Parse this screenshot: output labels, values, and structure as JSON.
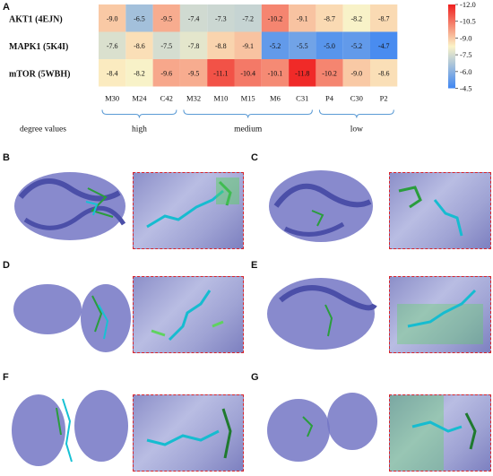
{
  "panel_labels": {
    "A": "A",
    "B": "B",
    "C": "C",
    "D": "D",
    "E": "E",
    "F": "F",
    "G": "G"
  },
  "chart_data": {
    "type": "heatmap",
    "rows": [
      "AKT1 (4EJN)",
      "MAPK1 (5K4I)",
      "mTOR (5WBH)"
    ],
    "columns": [
      "M30",
      "M24",
      "C42",
      "M32",
      "M10",
      "M15",
      "M6",
      "C31",
      "P4",
      "C30",
      "P2"
    ],
    "values": [
      [
        -9.0,
        -6.5,
        -9.5,
        -7.4,
        -7.3,
        -7.2,
        -10.2,
        -9.1,
        -8.7,
        -8.2,
        -8.7
      ],
      [
        -7.6,
        -8.6,
        -7.5,
        -7.8,
        -8.8,
        -9.1,
        -5.2,
        -5.5,
        -5.0,
        -5.2,
        -4.7
      ],
      [
        -8.4,
        -8.2,
        -9.6,
        -9.5,
        -11.1,
        -10.4,
        -10.1,
        -11.8,
        -10.2,
        -9.0,
        -8.6
      ]
    ],
    "colorbar": {
      "min": -12.0,
      "max": -4.5,
      "ticks": [
        -12.0,
        -10.5,
        -9.0,
        -7.5,
        -6.0,
        -4.5
      ]
    },
    "xlabel": "degree values",
    "groups": [
      {
        "label": "high",
        "columns": [
          "M30",
          "M24",
          "C42"
        ]
      },
      {
        "label": "medium",
        "columns": [
          "M32",
          "M10",
          "M15",
          "M6",
          "C31"
        ]
      },
      {
        "label": "low",
        "columns": [
          "P4",
          "C30",
          "P2"
        ]
      }
    ],
    "colors": {
      "low_end": "#ef1f1f",
      "mid": "#fbf3c7",
      "high_end": "#3f86f2"
    }
  }
}
